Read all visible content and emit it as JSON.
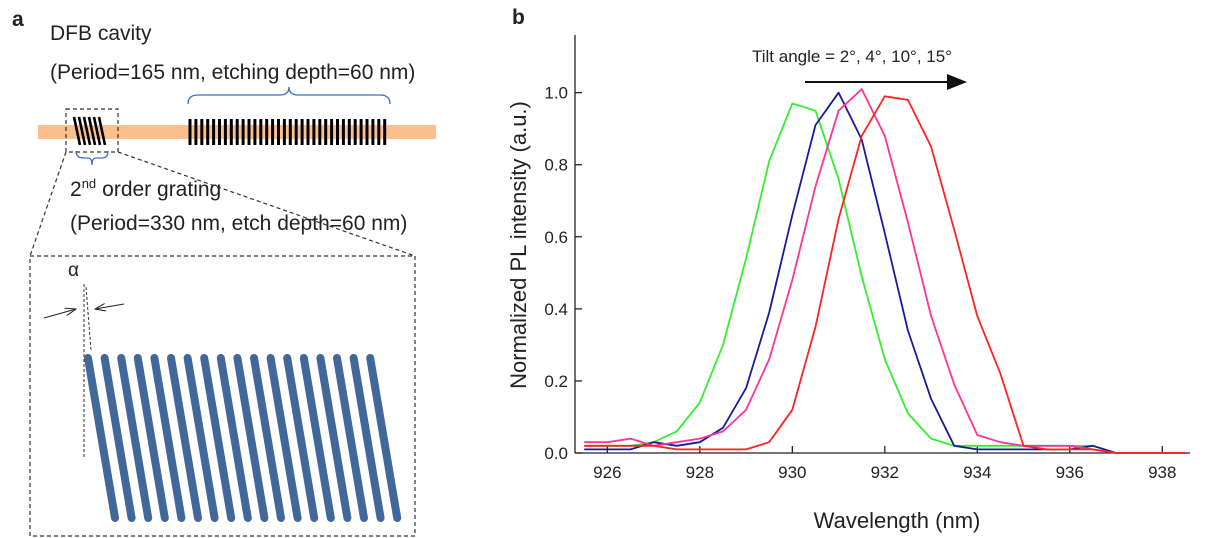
{
  "panel_a": {
    "label": "a",
    "cavity_title": "DFB cavity",
    "cavity_spec": "(Period=165 nm, etching depth=60 nm)",
    "grating_order": "2",
    "grating_order_sup": "nd",
    "grating_title": "order grating",
    "grating_spec": "(Period=330 nm, etch depth=60 nm)",
    "angle_symbol": "α"
  },
  "chart_data": {
    "type": "line",
    "panel_label": "b",
    "annotation": "Tilt angle = 2°, 4°, 10°, 15°",
    "xlabel": "Wavelength (nm)",
    "ylabel": "Normalized PL intensity (a.u.)",
    "x": [
      925.5,
      926,
      926.5,
      927,
      927.5,
      928,
      928.5,
      929,
      929.5,
      930,
      930.5,
      931,
      931.5,
      932,
      932.5,
      933,
      933.5,
      934,
      934.5,
      935,
      935.5,
      936,
      936.5,
      937,
      937.5,
      938,
      938.5
    ],
    "series": [
      {
        "color": "#33ee33",
        "values": [
          0.02,
          0.02,
          0.02,
          0.03,
          0.06,
          0.14,
          0.3,
          0.54,
          0.81,
          0.97,
          0.95,
          0.76,
          0.49,
          0.26,
          0.11,
          0.04,
          0.02,
          0.02,
          0.02,
          0.02,
          0.02,
          0.02,
          0.02,
          0.0,
          0.0,
          0.0,
          0.0
        ]
      },
      {
        "color": "#1a1a99",
        "values": [
          0.01,
          0.01,
          0.01,
          0.03,
          0.02,
          0.03,
          0.07,
          0.18,
          0.39,
          0.66,
          0.91,
          1.0,
          0.87,
          0.61,
          0.34,
          0.15,
          0.02,
          0.01,
          0.01,
          0.01,
          0.01,
          0.01,
          0.02,
          0.0,
          0.0,
          0.0,
          0.0
        ]
      },
      {
        "color": "#ff3399",
        "values": [
          0.03,
          0.03,
          0.04,
          0.02,
          0.03,
          0.04,
          0.06,
          0.12,
          0.26,
          0.48,
          0.74,
          0.95,
          1.01,
          0.88,
          0.64,
          0.38,
          0.19,
          0.05,
          0.03,
          0.02,
          0.02,
          0.02,
          0.01,
          0.0,
          0.0,
          0.0,
          0.0
        ]
      },
      {
        "color": "#ff2222",
        "values": [
          0.02,
          0.02,
          0.02,
          0.02,
          0.01,
          0.01,
          0.01,
          0.01,
          0.03,
          0.12,
          0.35,
          0.65,
          0.88,
          0.99,
          0.98,
          0.85,
          0.62,
          0.38,
          0.22,
          0.02,
          0.01,
          0.01,
          0.01,
          0.0,
          0.0,
          0.0,
          0.0
        ]
      }
    ],
    "xlim": [
      925.3,
      938.6
    ],
    "xticks": [
      926,
      928,
      930,
      932,
      934,
      936,
      938
    ],
    "ylim": [
      0,
      1.16
    ],
    "yticks": [
      {
        "value": 0,
        "label": "0.0"
      },
      0.2,
      0.4,
      0.6,
      0.8,
      {
        "value": 1,
        "label": "1.0"
      }
    ]
  }
}
